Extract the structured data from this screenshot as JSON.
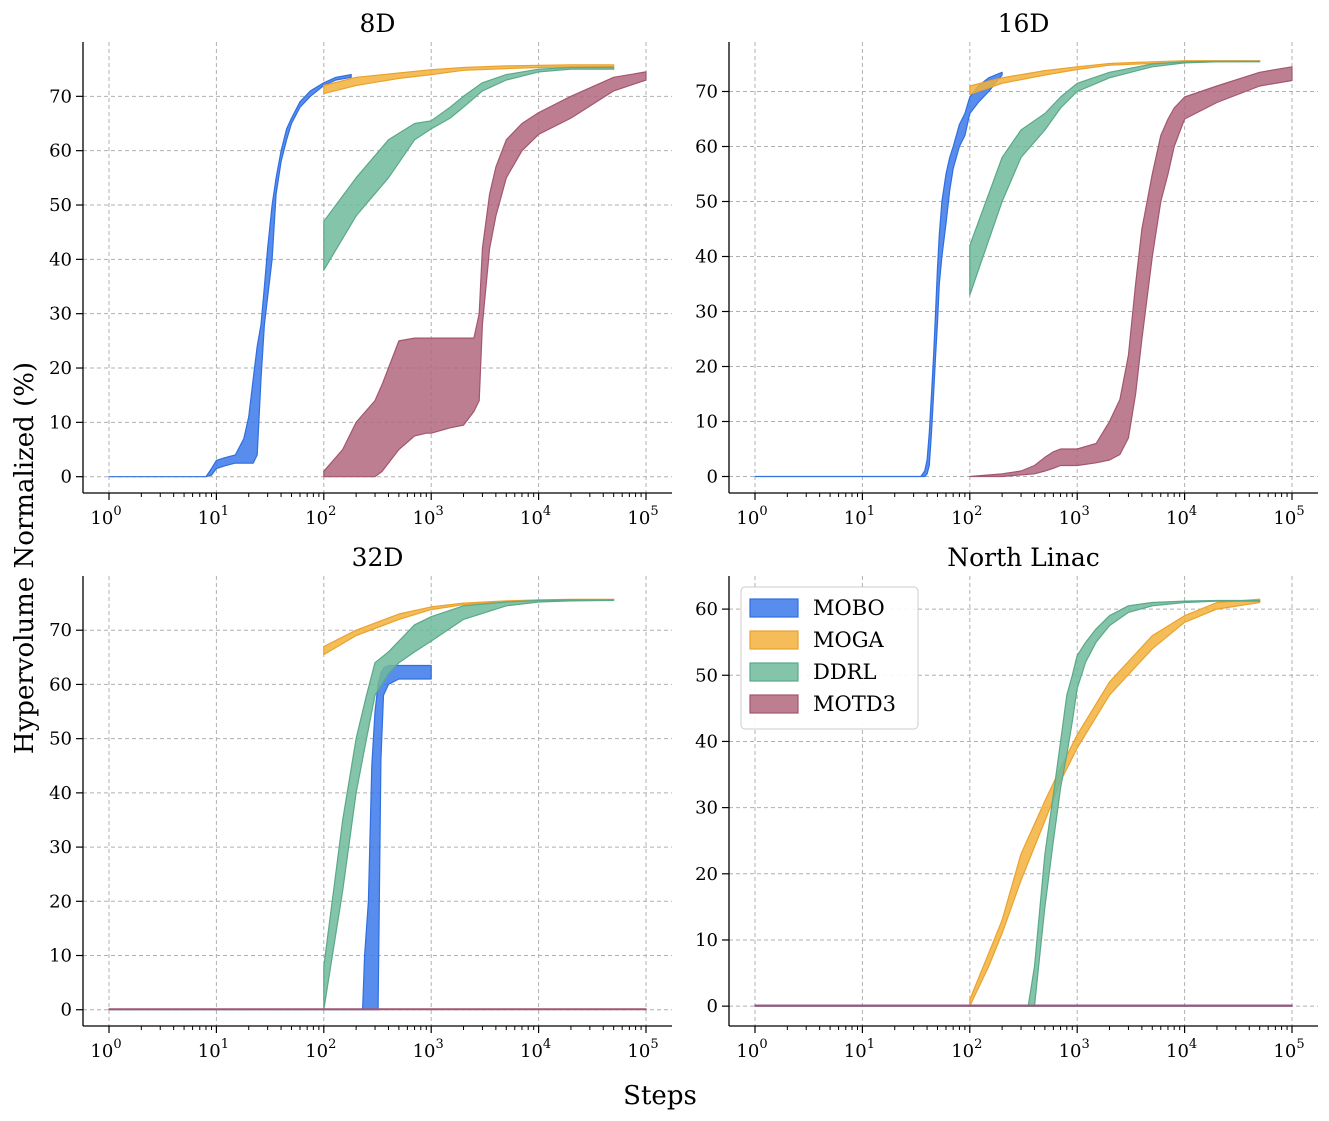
{
  "figure": {
    "xlabel": "Steps",
    "ylabel": "Hypervolume Normalized (%)",
    "colors": {
      "MOBO": "#3b78ea",
      "MOGA": "#f2b23c",
      "DDRL": "#6fba9c",
      "MOTD3": "#b3677f"
    }
  },
  "legend": {
    "entries": [
      "MOBO",
      "MOGA",
      "DDRL",
      "MOTD3"
    ],
    "placement": "upper-left of North Linac panel"
  },
  "chart_data": [
    {
      "type": "area",
      "title": "8D",
      "xscale": "log",
      "xlim": [
        1,
        100000
      ],
      "ylim": [
        -3,
        80
      ],
      "xticks": [
        1,
        10,
        100,
        1000,
        10000,
        100000
      ],
      "xtick_labels": [
        [
          "10",
          "0"
        ],
        [
          "10",
          "1"
        ],
        [
          "10",
          "2"
        ],
        [
          "10",
          "3"
        ],
        [
          "10",
          "4"
        ],
        [
          "10",
          "5"
        ]
      ],
      "yticks": [
        0,
        10,
        20,
        30,
        40,
        50,
        60,
        70
      ],
      "ytick_labels": [
        "0",
        "10",
        "20",
        "30",
        "40",
        "50",
        "60",
        "70"
      ],
      "series": [
        {
          "name": "MOBO",
          "x": [
            1,
            8,
            9,
            10,
            12,
            15,
            18,
            20,
            22,
            24,
            26,
            28,
            30,
            33,
            36,
            40,
            45,
            50,
            60,
            75,
            100,
            130,
            180
          ],
          "lo": [
            0,
            0,
            0.3,
            1.5,
            2,
            2.5,
            2.5,
            2.5,
            2.5,
            4,
            18,
            28,
            33,
            40,
            52,
            58,
            62,
            65,
            68,
            70,
            72,
            73,
            73.5
          ],
          "hi": [
            0,
            0,
            1.5,
            3,
            3.5,
            4,
            7,
            11,
            18,
            24,
            28,
            35,
            42,
            50,
            55,
            60,
            64,
            66,
            69,
            71,
            72.5,
            73.5,
            74
          ]
        },
        {
          "name": "MOGA",
          "x": [
            100,
            200,
            500,
            1000,
            2000,
            5000,
            10000,
            20000,
            50000
          ],
          "lo": [
            70.5,
            72,
            73.3,
            74,
            74.8,
            75.1,
            75.3,
            75.4,
            75.5
          ],
          "hi": [
            72,
            73.5,
            74.3,
            74.9,
            75.3,
            75.6,
            75.7,
            75.8,
            75.8
          ]
        },
        {
          "name": "DDRL",
          "x": [
            100,
            200,
            400,
            700,
            1000,
            1500,
            2000,
            3000,
            5000,
            10000,
            20000,
            50000
          ],
          "lo": [
            38,
            48,
            55,
            62,
            64,
            66,
            68,
            71,
            73,
            74.5,
            75,
            75
          ],
          "hi": [
            47,
            55,
            62,
            65,
            65.5,
            68,
            70,
            72.5,
            74,
            75,
            75.3,
            75.3
          ]
        },
        {
          "name": "MOTD3",
          "x": [
            100,
            150,
            200,
            300,
            350,
            500,
            700,
            900,
            1000,
            1500,
            2000,
            2500,
            2800,
            3000,
            3500,
            4000,
            5000,
            7000,
            10000,
            20000,
            50000,
            100000
          ],
          "lo": [
            0,
            0,
            0,
            0,
            1,
            5,
            7.5,
            8,
            8,
            9,
            9.5,
            12,
            14,
            28,
            42,
            48,
            55,
            60,
            63,
            66,
            71,
            73
          ],
          "hi": [
            1,
            5,
            10,
            14,
            17,
            25,
            25.5,
            25.5,
            25.5,
            25.5,
            25.5,
            25.5,
            30,
            42,
            52,
            57,
            62,
            65,
            67,
            70,
            73.5,
            74.5
          ]
        }
      ]
    },
    {
      "type": "area",
      "title": "16D",
      "xscale": "log",
      "xlim": [
        1,
        100000
      ],
      "ylim": [
        -3,
        79
      ],
      "xticks": [
        1,
        10,
        100,
        1000,
        10000,
        100000
      ],
      "xtick_labels": [
        [
          "10",
          "0"
        ],
        [
          "10",
          "1"
        ],
        [
          "10",
          "2"
        ],
        [
          "10",
          "3"
        ],
        [
          "10",
          "4"
        ],
        [
          "10",
          "5"
        ]
      ],
      "yticks": [
        0,
        10,
        20,
        30,
        40,
        50,
        60,
        70
      ],
      "ytick_labels": [
        "0",
        "10",
        "20",
        "30",
        "40",
        "50",
        "60",
        "70"
      ],
      "series": [
        {
          "name": "MOBO",
          "x": [
            1,
            35,
            38,
            40,
            42,
            44,
            46,
            48,
            50,
            52,
            55,
            60,
            65,
            70,
            80,
            90,
            100,
            120,
            150,
            200
          ],
          "lo": [
            0,
            0,
            0,
            0.5,
            2,
            8,
            15,
            22,
            28,
            35,
            40,
            46,
            52,
            56,
            60,
            62,
            66,
            68,
            70,
            73
          ],
          "hi": [
            0,
            0,
            1,
            3,
            8,
            15,
            22,
            30,
            38,
            44,
            50,
            55,
            58,
            60,
            64,
            66,
            69,
            71,
            72.5,
            73.5
          ]
        },
        {
          "name": "MOGA",
          "x": [
            100,
            200,
            500,
            1000,
            2000,
            5000,
            10000,
            20000,
            50000
          ],
          "lo": [
            69.5,
            71.5,
            73,
            74,
            74.8,
            75.1,
            75.3,
            75.4,
            75.5
          ],
          "hi": [
            71,
            72.5,
            73.8,
            74.5,
            75.1,
            75.4,
            75.6,
            75.6,
            75.6
          ]
        },
        {
          "name": "DDRL",
          "x": [
            100,
            200,
            300,
            500,
            700,
            1000,
            2000,
            5000,
            10000,
            20000,
            50000
          ],
          "lo": [
            33,
            50,
            58,
            63,
            67,
            70,
            72.5,
            74.5,
            75.2,
            75.4,
            75.4
          ],
          "hi": [
            42,
            58,
            63,
            66,
            69,
            71.5,
            73.5,
            75,
            75.4,
            75.5,
            75.5
          ]
        },
        {
          "name": "MOTD3",
          "x": [
            100,
            200,
            300,
            400,
            500,
            600,
            700,
            1000,
            1500,
            2000,
            2500,
            3000,
            3500,
            4000,
            5000,
            6000,
            7000,
            8000,
            10000,
            20000,
            50000,
            100000
          ],
          "lo": [
            0,
            0,
            0.3,
            0.5,
            1,
            1.5,
            2,
            2,
            2.5,
            3,
            4,
            7,
            15,
            25,
            40,
            50,
            55,
            60,
            65,
            68,
            71,
            72
          ],
          "hi": [
            0,
            0.5,
            1,
            2,
            3.5,
            4.5,
            5,
            5,
            6,
            10,
            14,
            22,
            35,
            45,
            55,
            62,
            65,
            67,
            69,
            71,
            73.5,
            74.5
          ]
        }
      ]
    },
    {
      "type": "area",
      "title": "32D",
      "xscale": "log",
      "xlim": [
        1,
        100000
      ],
      "ylim": [
        -3,
        80
      ],
      "xticks": [
        1,
        10,
        100,
        1000,
        10000,
        100000
      ],
      "xtick_labels": [
        [
          "10",
          "0"
        ],
        [
          "10",
          "1"
        ],
        [
          "10",
          "2"
        ],
        [
          "10",
          "3"
        ],
        [
          "10",
          "4"
        ],
        [
          "10",
          "5"
        ]
      ],
      "yticks": [
        0,
        10,
        20,
        30,
        40,
        50,
        60,
        70
      ],
      "ytick_labels": [
        "0",
        "10",
        "20",
        "30",
        "40",
        "50",
        "60",
        "70"
      ],
      "series": [
        {
          "name": "MOBO",
          "x": [
            1,
            230,
            240,
            260,
            280,
            300,
            320,
            340,
            360,
            400,
            500,
            700,
            1000
          ],
          "lo": [
            0,
            0,
            0,
            0,
            0,
            0,
            0,
            46,
            58,
            60,
            61,
            61,
            61
          ],
          "hi": [
            0,
            0,
            10,
            20,
            45,
            55,
            60,
            62,
            63,
            63.5,
            63.5,
            63.5,
            63.5
          ]
        },
        {
          "name": "MOGA",
          "x": [
            100,
            200,
            500,
            1000,
            2000,
            5000,
            10000,
            20000,
            50000
          ],
          "lo": [
            65.5,
            69,
            72,
            73.8,
            74.7,
            75.2,
            75.4,
            75.5,
            75.6
          ],
          "hi": [
            67,
            70,
            73,
            74.3,
            75,
            75.4,
            75.6,
            75.7,
            75.7
          ]
        },
        {
          "name": "DDRL",
          "x": [
            100,
            150,
            200,
            250,
            300,
            400,
            500,
            700,
            1000,
            2000,
            5000,
            10000,
            20000,
            50000
          ],
          "lo": [
            0,
            22,
            40,
            50,
            58,
            62,
            64,
            66,
            68,
            72,
            74.5,
            75.2,
            75.4,
            75.5
          ],
          "hi": [
            8,
            35,
            50,
            58,
            64,
            66,
            68,
            71,
            72.5,
            74.5,
            75.2,
            75.5,
            75.6,
            75.6
          ]
        },
        {
          "name": "MOTD3",
          "x": [
            1,
            100000
          ],
          "lo": [
            0,
            0
          ],
          "hi": [
            0.15,
            0.15
          ]
        }
      ]
    },
    {
      "type": "area",
      "title": "North Linac",
      "xscale": "log",
      "xlim": [
        1,
        100000
      ],
      "ylim": [
        -3,
        65
      ],
      "xticks": [
        1,
        10,
        100,
        1000,
        10000,
        100000
      ],
      "xtick_labels": [
        [
          "10",
          "0"
        ],
        [
          "10",
          "1"
        ],
        [
          "10",
          "2"
        ],
        [
          "10",
          "3"
        ],
        [
          "10",
          "4"
        ],
        [
          "10",
          "5"
        ]
      ],
      "yticks": [
        0,
        10,
        20,
        30,
        40,
        50,
        60
      ],
      "ytick_labels": [
        "0",
        "10",
        "20",
        "30",
        "40",
        "50",
        "60"
      ],
      "series": [
        {
          "name": "MOBO",
          "x": [
            1,
            100000
          ],
          "lo": [
            0,
            0
          ],
          "hi": [
            0.15,
            0.15
          ]
        },
        {
          "name": "MOGA",
          "x": [
            100,
            150,
            200,
            300,
            500,
            700,
            1000,
            2000,
            5000,
            10000,
            20000,
            50000
          ],
          "lo": [
            0,
            6,
            11,
            19,
            28,
            34,
            39,
            47,
            54,
            58,
            60,
            61
          ],
          "hi": [
            1,
            8,
            13,
            23,
            31,
            36,
            41,
            49,
            56,
            59,
            61,
            61.5
          ]
        },
        {
          "name": "DDRL",
          "x": [
            300,
            350,
            400,
            450,
            500,
            600,
            700,
            800,
            900,
            1000,
            1200,
            1500,
            2000,
            3000,
            5000,
            10000,
            20000,
            50000
          ],
          "lo": [
            0,
            0,
            0,
            8,
            15,
            25,
            33,
            38,
            43,
            48,
            52,
            55,
            57.5,
            59.5,
            60.5,
            61,
            61.2,
            61.2
          ],
          "hi": [
            0,
            0,
            6,
            15,
            23,
            32,
            40,
            47,
            50,
            53,
            55,
            57,
            59,
            60.5,
            61,
            61.2,
            61.3,
            61.3
          ]
        },
        {
          "name": "MOTD3",
          "x": [
            1,
            100000
          ],
          "lo": [
            0,
            0
          ],
          "hi": [
            0.15,
            0.15
          ]
        }
      ]
    }
  ]
}
